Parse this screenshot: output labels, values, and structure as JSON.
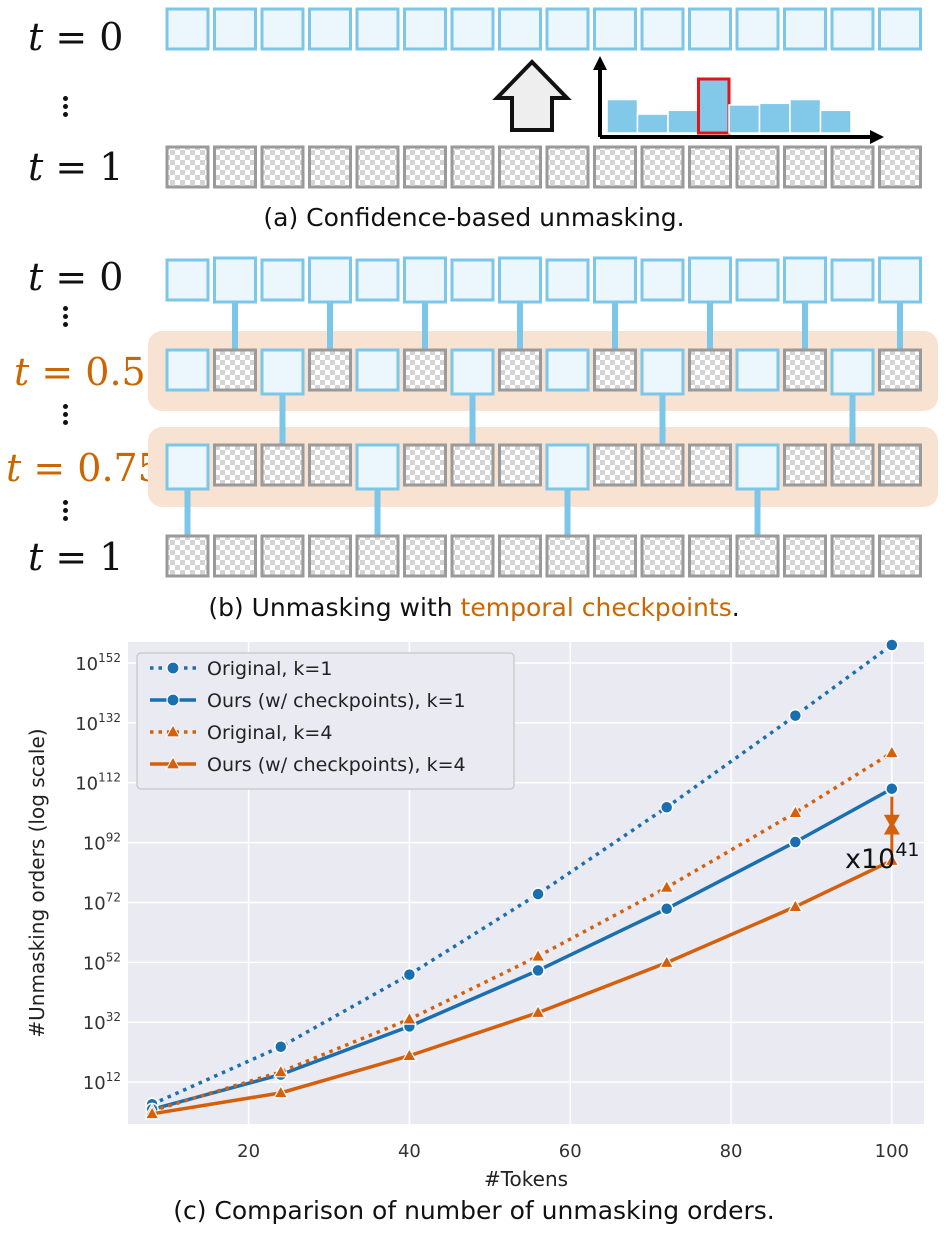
{
  "panel_a": {
    "label_top": "t = 0",
    "label_bottom": "t = 1",
    "caption": "(a) Confidence-based unmasking.",
    "histogram_heights": [
      0.62,
      0.35,
      0.42,
      1.0,
      0.52,
      0.55,
      0.62,
      0.42
    ],
    "histogram_highlight_index": 3
  },
  "panel_b": {
    "label_t0": "t = 0",
    "label_t05": "t = 0.5",
    "label_t075": "t = 0.75",
    "label_t1": "t = 1",
    "caption_prefix": "(b) Unmasking with ",
    "caption_highlight": "temporal checkpoints",
    "caption_suffix": ".",
    "row_t05_unmasked": [
      0,
      2,
      4,
      6,
      8,
      10,
      12,
      14
    ],
    "row_t075_unmasked": [
      0,
      4,
      8,
      12
    ],
    "links_0_to_05": [
      1,
      3,
      5,
      7,
      9,
      11,
      13,
      15
    ],
    "links_05_to_075": [
      2,
      6,
      10,
      14
    ],
    "links_075_to_1": [
      0,
      4,
      8,
      12
    ]
  },
  "colors": {
    "blue_box": "#7cc7e8",
    "blue_fill": "#ecf7fd",
    "mask_border": "#9a9a9a",
    "band": "#f8e2d2",
    "orange": "#cc6600",
    "series_blue": "#1a6fb0",
    "series_orange": "#d4600c",
    "plot_bg": "#eaeaf2"
  },
  "chart_data": {
    "type": "line",
    "title": "",
    "caption": "(c) Comparison of number of unmasking orders.",
    "xlabel": "#Tokens",
    "ylabel": "#Unmasking orders (log scale)",
    "xlim": [
      5,
      104
    ],
    "ylim_log10": [
      -2,
      159
    ],
    "xticks": [
      20,
      40,
      60,
      80,
      100
    ],
    "xtick_labels": [
      "20",
      "40",
      "60",
      "80",
      "100"
    ],
    "yticks_log10": [
      12,
      32,
      52,
      72,
      92,
      112,
      132,
      152
    ],
    "ytick_labels": [
      "10",
      "10",
      "10",
      "10",
      "10",
      "10",
      "10",
      "10"
    ],
    "ytick_exponents": [
      "12",
      "32",
      "52",
      "72",
      "92",
      "112",
      "132",
      "152"
    ],
    "x": [
      8,
      24,
      40,
      56,
      72,
      88,
      100
    ],
    "series": [
      {
        "name": "Original, k=1",
        "style": "dotted",
        "marker": "circle",
        "color": "#1a6fb0",
        "log10_values": [
          4.6,
          23.8,
          47.9,
          74.8,
          103.8,
          134.4,
          158.0
        ]
      },
      {
        "name": "Ours (w/ checkpoints), k=1",
        "style": "solid",
        "marker": "circle",
        "color": "#1a6fb0",
        "log10_values": [
          2.9,
          14.5,
          30.6,
          49.3,
          69.9,
          92.2,
          110.0
        ]
      },
      {
        "name": "Original, k=4",
        "style": "dotted",
        "marker": "triangle",
        "color": "#d4600c",
        "log10_values": [
          2.4,
          15.4,
          33.0,
          54.0,
          77.0,
          102.0,
          122.0
        ]
      },
      {
        "name": "Ours (w/ checkpoints), k=4",
        "style": "solid",
        "marker": "triangle",
        "color": "#d4600c",
        "log10_values": [
          1.4,
          8.4,
          20.8,
          35.2,
          51.9,
          70.6,
          86.0
        ]
      }
    ],
    "annotation": {
      "base": "x10",
      "exponent": "41"
    }
  }
}
